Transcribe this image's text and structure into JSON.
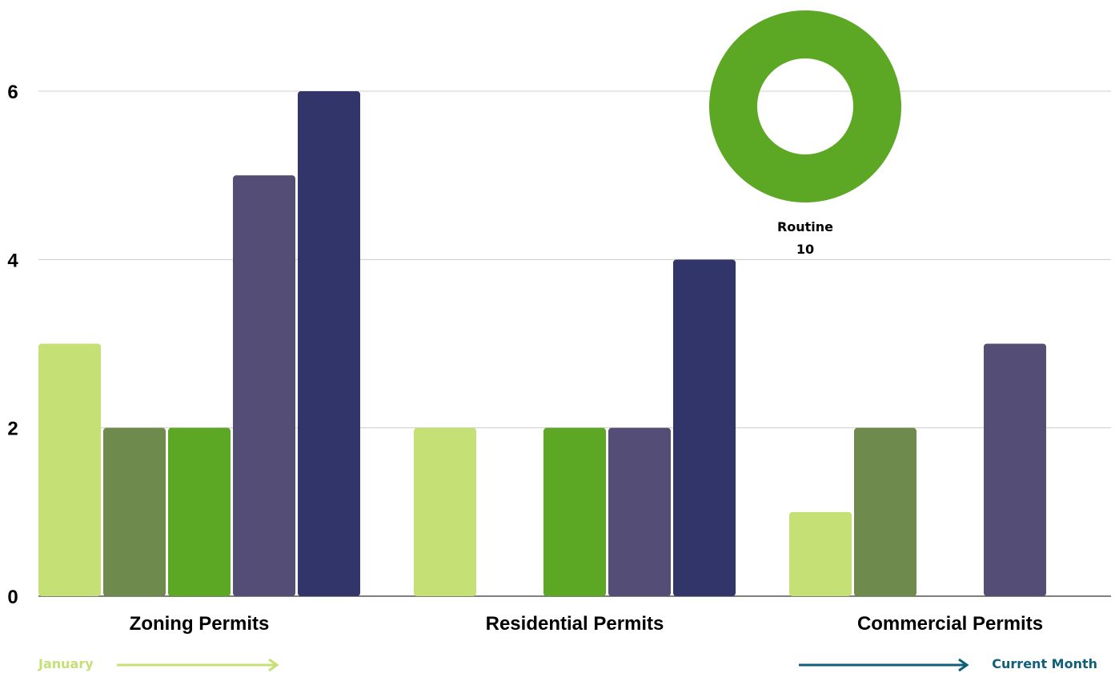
{
  "chart_data": {
    "type": "bar",
    "categories": [
      "Zoning Permits",
      "Residential Permits",
      "Commercial Permits"
    ],
    "series": [
      {
        "color": "#c5e075",
        "values": [
          3,
          2,
          1
        ]
      },
      {
        "color": "#6f8a4d",
        "values": [
          2,
          0,
          2
        ]
      },
      {
        "color": "#5ca723",
        "values": [
          2,
          2,
          0
        ]
      },
      {
        "color": "#544e76",
        "values": [
          5,
          2,
          3
        ]
      },
      {
        "color": "#313569",
        "values": [
          6,
          4,
          0
        ]
      }
    ],
    "yticks": [
      "0",
      "2",
      "4",
      "6"
    ],
    "ylim": [
      0,
      6.6
    ],
    "grid": true
  },
  "donut": {
    "type": "pie",
    "slices": [
      {
        "label": "Routine",
        "value": "10",
        "color": "#5ca723"
      }
    ]
  },
  "legend": {
    "start_label": "January",
    "start_color": "#c5e075",
    "end_label": "Current Month",
    "end_color": "#0f5f7a"
  }
}
